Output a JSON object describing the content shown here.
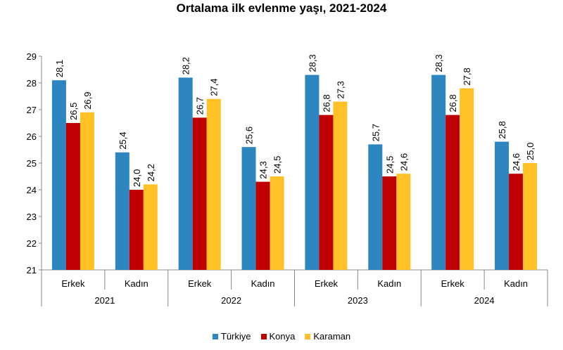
{
  "chart_data": {
    "type": "bar",
    "title": "Ortalama ilk evlenme yaşı, 2021-2024",
    "ylim": [
      21,
      29
    ],
    "yticks": [
      "21",
      "22",
      "23",
      "24",
      "25",
      "26",
      "27",
      "28",
      "29"
    ],
    "groups": [
      {
        "year": "2021",
        "categories": [
          {
            "label": "Erkek",
            "values": [
              28.1,
              26.5,
              26.9
            ],
            "labels": [
              "28,1",
              "26,5",
              "26,9"
            ]
          },
          {
            "label": "Kadın",
            "values": [
              25.4,
              24.0,
              24.2
            ],
            "labels": [
              "25,4",
              "24,0",
              "24,2"
            ]
          }
        ]
      },
      {
        "year": "2022",
        "categories": [
          {
            "label": "Erkek",
            "values": [
              28.2,
              26.7,
              27.4
            ],
            "labels": [
              "28,2",
              "26,7",
              "27,4"
            ]
          },
          {
            "label": "Kadın",
            "values": [
              25.6,
              24.3,
              24.5
            ],
            "labels": [
              "25,6",
              "24,3",
              "24,5"
            ]
          }
        ]
      },
      {
        "year": "2023",
        "categories": [
          {
            "label": "Erkek",
            "values": [
              28.3,
              26.8,
              27.3
            ],
            "labels": [
              "28,3",
              "26,8",
              "27,3"
            ]
          },
          {
            "label": "Kadın",
            "values": [
              25.7,
              24.5,
              24.6
            ],
            "labels": [
              "25,7",
              "24,5",
              "24,6"
            ]
          }
        ]
      },
      {
        "year": "2024",
        "categories": [
          {
            "label": "Erkek",
            "values": [
              28.3,
              26.8,
              27.8
            ],
            "labels": [
              "28,3",
              "26,8",
              "27,8"
            ]
          },
          {
            "label": "Kadın",
            "values": [
              25.8,
              24.6,
              25.0
            ],
            "labels": [
              "25,8",
              "24,6",
              "25,0"
            ]
          }
        ]
      }
    ],
    "series": [
      {
        "name": "Türkiye",
        "color": "#2E86C1"
      },
      {
        "name": "Konya",
        "color": "#C00000"
      },
      {
        "name": "Karaman",
        "color": "#FFC125"
      }
    ]
  }
}
